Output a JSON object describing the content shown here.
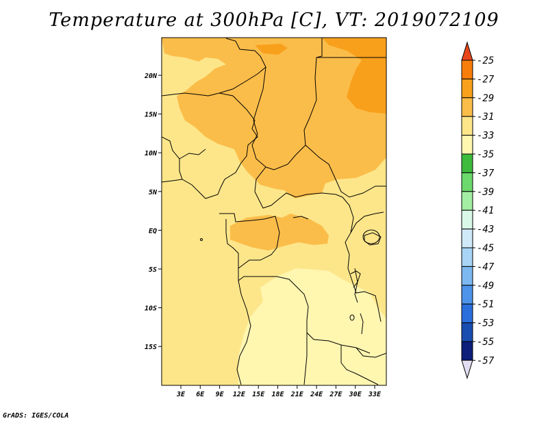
{
  "title": "Temperature at 300hPa [C], VT: 2019072109",
  "footer": "GrADS: IGES/COLA",
  "map": {
    "lat_ticks": [
      "20N",
      "15N",
      "10N",
      "5N",
      "EQ",
      "5S",
      "10S",
      "15S"
    ],
    "lon_ticks": [
      "3E",
      "6E",
      "9E",
      "12E",
      "15E",
      "18E",
      "21E",
      "24E",
      "27E",
      "30E",
      "33E"
    ],
    "fill_colors": {
      "band_33_31": "#fde68a",
      "band_31_29": "#fbbd4a",
      "band_29_27": "#f8a01c",
      "band_35_33": "#fff6b0",
      "coast_line": "#000000"
    }
  },
  "colorbar": {
    "labels": [
      "-25",
      "-27",
      "-29",
      "-31",
      "-33",
      "-35",
      "-37",
      "-39",
      "-41",
      "-43",
      "-45",
      "-47",
      "-49",
      "-51",
      "-53",
      "-55",
      "-57"
    ],
    "colors": [
      "#e8471a",
      "#f87e0b",
      "#f9a01c",
      "#fbbd4a",
      "#fde68a",
      "#fff6b0",
      "#3dbb3d",
      "#6bd96b",
      "#a2eea2",
      "#daf8e8",
      "#cfe9f8",
      "#a8d4f5",
      "#7db8f0",
      "#4d94ea",
      "#2b6fdc",
      "#1a4db0",
      "#0d1f7a",
      "#e2ddf2"
    ]
  }
}
